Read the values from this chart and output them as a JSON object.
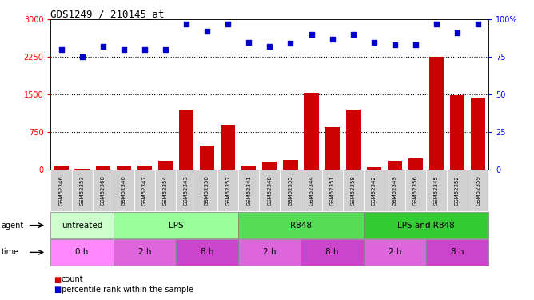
{
  "title": "GDS1249 / 210145_at",
  "samples": [
    "GSM52346",
    "GSM52353",
    "GSM52360",
    "GSM52340",
    "GSM52347",
    "GSM52354",
    "GSM52343",
    "GSM52350",
    "GSM52357",
    "GSM52341",
    "GSM52348",
    "GSM52355",
    "GSM52344",
    "GSM52351",
    "GSM52358",
    "GSM52342",
    "GSM52349",
    "GSM52356",
    "GSM52345",
    "GSM52352",
    "GSM52359"
  ],
  "counts": [
    80,
    10,
    70,
    60,
    80,
    170,
    1200,
    480,
    900,
    80,
    160,
    190,
    1530,
    850,
    1200,
    50,
    170,
    220,
    2250,
    1480,
    1440
  ],
  "percentiles": [
    80,
    75,
    82,
    80,
    80,
    80,
    97,
    92,
    97,
    85,
    82,
    84,
    90,
    87,
    90,
    85,
    83,
    83,
    97,
    91,
    97
  ],
  "ylim_left": [
    0,
    3000
  ],
  "ylim_right": [
    0,
    100
  ],
  "yticks_left": [
    0,
    750,
    1500,
    2250,
    3000
  ],
  "yticks_right": [
    0,
    25,
    50,
    75,
    100
  ],
  "bar_color": "#CC0000",
  "scatter_color": "#0000CC",
  "agent_groups": [
    {
      "label": "untreated",
      "start": 0,
      "end": 3,
      "color": "#ccffcc"
    },
    {
      "label": "LPS",
      "start": 3,
      "end": 9,
      "color": "#99ff99"
    },
    {
      "label": "R848",
      "start": 9,
      "end": 15,
      "color": "#55dd55"
    },
    {
      "label": "LPS and R848",
      "start": 15,
      "end": 21,
      "color": "#33cc33"
    }
  ],
  "time_groups": [
    {
      "label": "0 h",
      "start": 0,
      "end": 3,
      "color": "#ff88ff"
    },
    {
      "label": "2 h",
      "start": 3,
      "end": 6,
      "color": "#dd66dd"
    },
    {
      "label": "8 h",
      "start": 6,
      "end": 9,
      "color": "#cc44cc"
    },
    {
      "label": "2 h",
      "start": 9,
      "end": 12,
      "color": "#dd66dd"
    },
    {
      "label": "8 h",
      "start": 12,
      "end": 15,
      "color": "#cc44cc"
    },
    {
      "label": "2 h",
      "start": 15,
      "end": 18,
      "color": "#dd66dd"
    },
    {
      "label": "8 h",
      "start": 18,
      "end": 21,
      "color": "#cc44cc"
    }
  ],
  "xtick_bg": "#d0d0d0",
  "legend_count_color": "#CC0000",
  "legend_pct_color": "#0000CC"
}
